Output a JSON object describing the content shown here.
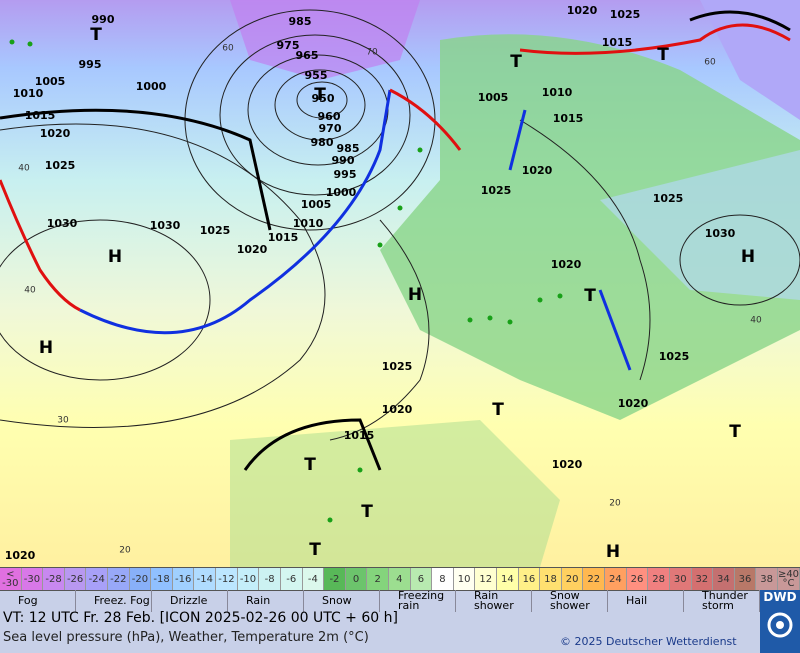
{
  "map": {
    "systems": [
      "H",
      "H",
      "H",
      "H",
      "H",
      "T",
      "T",
      "T",
      "T",
      "T",
      "T",
      "T",
      "T",
      "T",
      "T"
    ],
    "isobars": [
      "990",
      "985",
      "975",
      "965",
      "955",
      "950",
      "960",
      "970",
      "980",
      "985",
      "990",
      "995",
      "1000",
      "1005",
      "1010",
      "1015",
      "1020",
      "1025",
      "1030",
      "1030",
      "1025",
      "1020",
      "1015",
      "1010",
      "1005",
      "1000",
      "995",
      "1005",
      "1010",
      "1015",
      "1020",
      "1025",
      "1025",
      "1030",
      "1020",
      "1025",
      "1025",
      "1020",
      "1015",
      "1020",
      "1020",
      "1020",
      "1015",
      "1020",
      "1025"
    ],
    "grid_labels": [
      "40",
      "40",
      "30",
      "20",
      "20",
      "40",
      "60",
      "70",
      "60"
    ]
  },
  "scale": {
    "labels": [
      "< -30",
      "-30",
      "-28",
      "-26",
      "-24",
      "-22",
      "-20",
      "-18",
      "-16",
      "-14",
      "-12",
      "-10",
      "-8",
      "-6",
      "-4",
      "-2",
      "0",
      "2",
      "4",
      "6",
      "8",
      "10",
      "12",
      "14",
      "16",
      "18",
      "20",
      "22",
      "24",
      "26",
      "28",
      "30",
      "32",
      "34",
      "36",
      "38",
      "≥40 °C"
    ],
    "colors": [
      "#e070e0",
      "#d878e8",
      "#c888f0",
      "#b898f0",
      "#a8a0f8",
      "#98a8f8",
      "#88b0f8",
      "#90c0ff",
      "#a0d0ff",
      "#b0dcff",
      "#bce6ff",
      "#c4eefa",
      "#ccf2f2",
      "#d4f6f0",
      "#dcf8ec",
      "#58b858",
      "#6cc46c",
      "#84d47c",
      "#9cde90",
      "#b8eab0",
      "#ffffff",
      "#fffff0",
      "#ffffd0",
      "#ffffa8",
      "#fff088",
      "#ffe070",
      "#ffd060",
      "#ffb850",
      "#ffa060",
      "#ff9080",
      "#f08080",
      "#e07878",
      "#d47070",
      "#c47070",
      "#b87868",
      "#c89898"
    ]
  },
  "legend": [
    "Fog",
    "Freez. Fog",
    "Drizzle",
    "Rain",
    "Snow",
    "Freezing rain",
    "Rain shower",
    "Snow shower",
    "Hail",
    "Thunder storm"
  ],
  "footer": {
    "valid": "VT: 12 UTC Fr.  28 Feb. [ICON 2025-02-26  00 UTC + 60 h]",
    "subtitle": "Sea level pressure (hPa), Weather, Temperature 2m (°C)",
    "copyright": "© 2025 Deutscher Wetterdienst",
    "logo": "DWD"
  }
}
